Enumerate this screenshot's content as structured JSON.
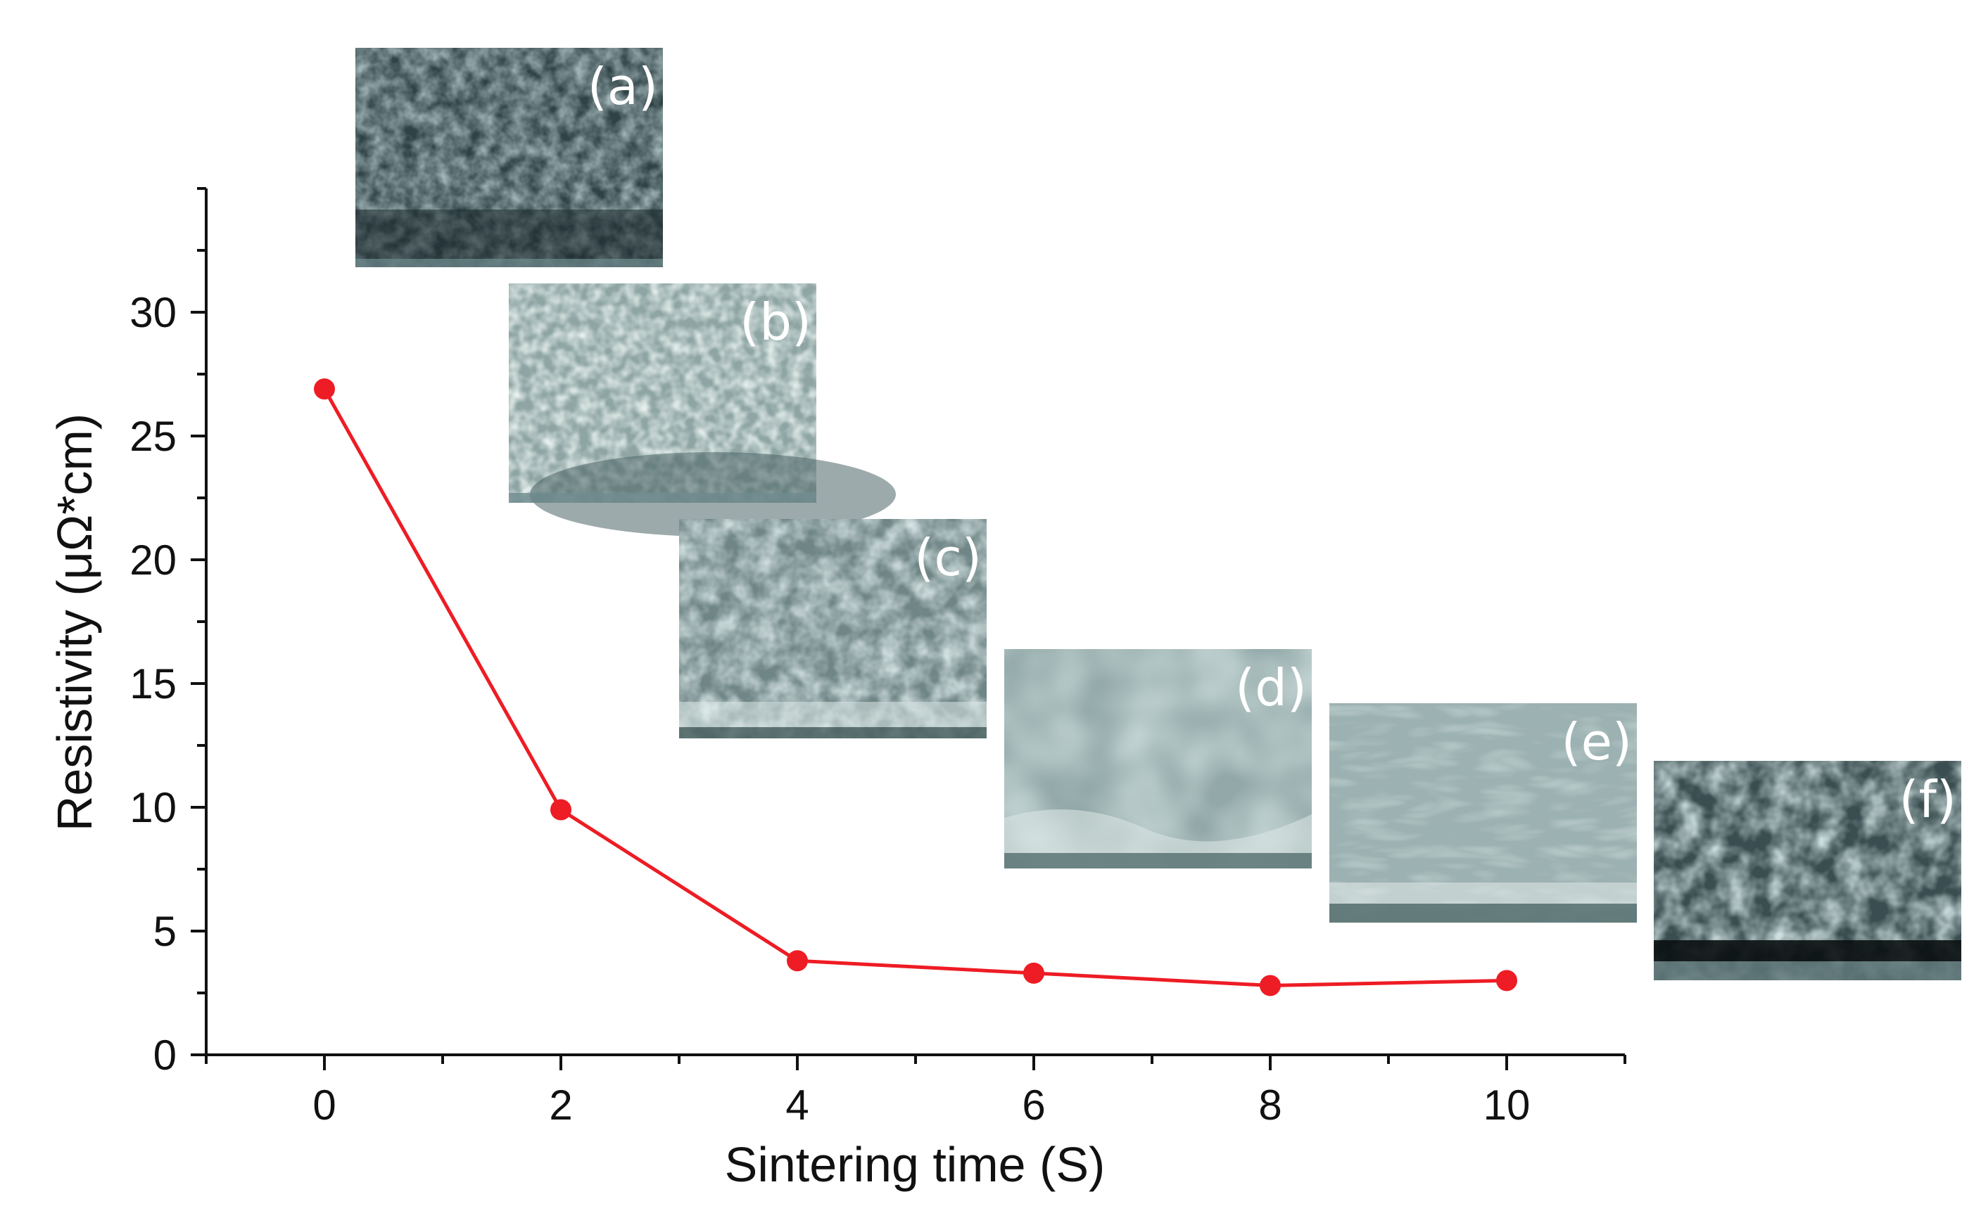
{
  "chart_data": {
    "type": "line",
    "title": "",
    "xlabel": "Sintering time (S)",
    "ylabel": "Resistivity (μΩ*cm)",
    "xlim": [
      -1,
      11
    ],
    "ylim": [
      0,
      35
    ],
    "x_ticks": [
      0,
      2,
      4,
      6,
      8,
      10
    ],
    "y_ticks": [
      0,
      5,
      10,
      15,
      20,
      25,
      30
    ],
    "grid": false,
    "legend": "none",
    "series": [
      {
        "color": "#ee1c24",
        "marker": "circle",
        "x": [
          0,
          2,
          4,
          6,
          8,
          10
        ],
        "y": [
          26.9,
          9.9,
          3.8,
          3.3,
          2.8,
          3.0
        ]
      }
    ],
    "insets": [
      {
        "label": "(a)",
        "style": "porous-grains"
      },
      {
        "label": "(b)",
        "style": "rounded-particles"
      },
      {
        "label": "(c)",
        "style": "coarse-grains"
      },
      {
        "label": "(d)",
        "style": "smooth-dense"
      },
      {
        "label": "(e)",
        "style": "flat-dense"
      },
      {
        "label": "(f)",
        "style": "dark-rough"
      }
    ]
  }
}
